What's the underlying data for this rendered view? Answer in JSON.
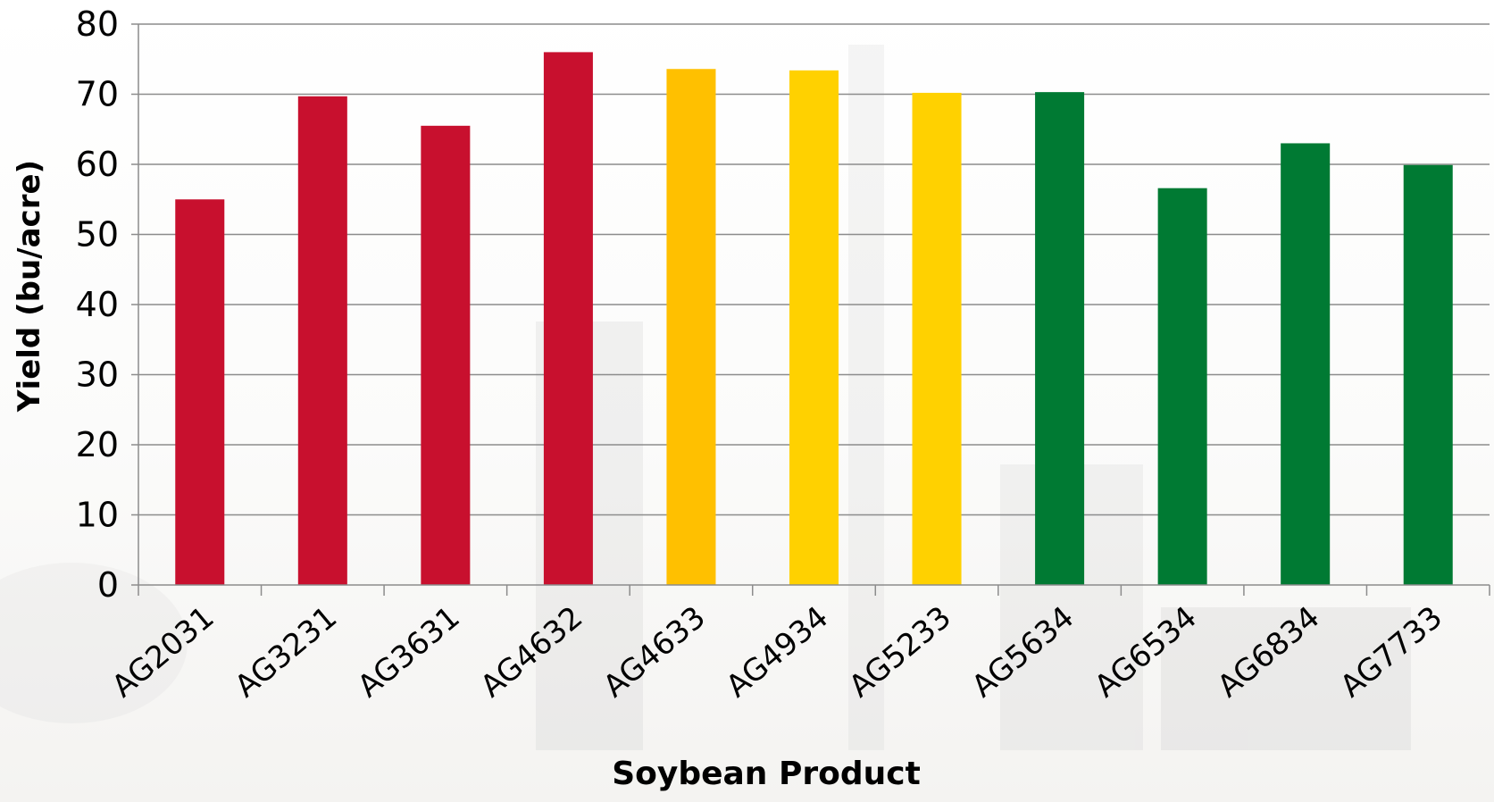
{
  "chart_data": {
    "type": "bar",
    "title": "",
    "xlabel": "Soybean Product",
    "ylabel": "Yield (bu/acre)",
    "ylim": [
      0,
      80
    ],
    "yticks": [
      "0",
      "10",
      "20",
      "30",
      "40",
      "50",
      "60",
      "70",
      "80"
    ],
    "grid": true,
    "legend": "none",
    "categories": [
      "AG2031",
      "AG3231",
      "AG3631",
      "AG4632",
      "AG4633",
      "AG4934",
      "AG5233",
      "AG5634",
      "AG6534",
      "AG6834",
      "AG7733"
    ],
    "values": [
      55,
      69.7,
      65.5,
      76,
      73.6,
      73.4,
      70.2,
      70.3,
      56.6,
      63,
      59.9
    ],
    "colors": [
      "#c8102e",
      "#c8102e",
      "#c8102e",
      "#c8102e",
      "#ffc000",
      "#ffd100",
      "#ffd100",
      "#007a33",
      "#007a33",
      "#007a33",
      "#007a33"
    ]
  }
}
